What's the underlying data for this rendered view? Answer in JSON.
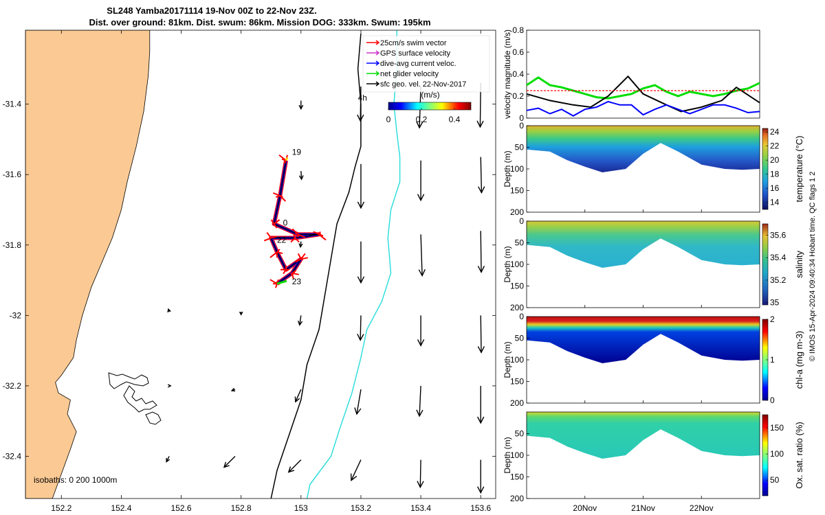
{
  "title": {
    "line1": "SL248 Yamba20171114 19-Nov 00Z to 22-Nov 23Z.",
    "line2": "Dist. over ground: 81km. Dist. swum: 86km. Mission DOG: 333km. Swum: 195km"
  },
  "colors": {
    "land": "#fbca94",
    "isobath_200": "#000000",
    "isobath_1000": "#33dddd",
    "glider_track": "#0000ff",
    "net_velocity": "#00dd00",
    "swim_vector": "#ff0000",
    "gps_velocity": "#cc33cc"
  },
  "chart_data": [
    {
      "type": "scatter",
      "name": "map",
      "xlim": [
        152.08,
        153.65
      ],
      "ylim": [
        -32.52,
        -31.19
      ],
      "x_ticks": [
        152.2,
        152.4,
        152.6,
        152.8,
        153,
        153.2,
        153.4,
        153.6
      ],
      "x_tick_labels": [
        "152.2",
        "152.4",
        "152.6",
        "152.8",
        "153",
        "153.2",
        "153.4",
        "153.6"
      ],
      "y_ticks": [
        -31.4,
        -31.6,
        -31.8,
        -32,
        -32.2,
        -32.4
      ],
      "y_tick_labels": [
        "-31.4",
        "-31.6",
        "-31.8",
        "-32",
        "-32.2",
        "-32.4"
      ],
      "legend": [
        {
          "label": "25cm/s swim vector",
          "color": "#ff0000"
        },
        {
          "label": "GPS surface velocity",
          "color": "#cc33cc"
        },
        {
          "label": "dive-avg current veloc.",
          "color": "#0000ff"
        },
        {
          "label": "net glider velocity",
          "color": "#00dd00"
        },
        {
          "label": "sfc geo. vel. 22-Nov-2017",
          "color": "#000000"
        }
      ],
      "legend_placement": "top-right",
      "colorbar": {
        "label": "(m/s)",
        "ticks": [
          "0",
          "0.2",
          "0.4"
        ],
        "range": [
          0,
          0.5
        ]
      },
      "isobath_note": "isobaths: 0   200  1000m",
      "day_labels": [
        {
          "text": "19",
          "lon": 152.97,
          "lat": -31.544
        },
        {
          "text": "22",
          "lon": 152.92,
          "lat": -31.794
        },
        {
          "text": "23",
          "lon": 152.97,
          "lat": -31.912
        }
      ],
      "clipped_labels": [
        {
          "text": "4h",
          "lon": 153.19,
          "lat": -31.39
        },
        {
          "text": "0",
          "lon": 152.94,
          "lat": -31.745
        }
      ],
      "track": [
        [
          152.95,
          -31.56
        ],
        [
          152.93,
          -31.66
        ],
        [
          152.91,
          -31.74
        ],
        [
          152.99,
          -31.77
        ],
        [
          153.06,
          -31.77
        ],
        [
          152.98,
          -31.78
        ],
        [
          152.9,
          -31.78
        ],
        [
          152.92,
          -31.82
        ],
        [
          152.95,
          -31.87
        ],
        [
          153.0,
          -31.84
        ],
        [
          152.97,
          -31.88
        ],
        [
          152.92,
          -31.91
        ]
      ],
      "surface_velocity_field": [
        {
          "lon": 153.0,
          "lat": -31.39,
          "u": 0.0,
          "v": -0.3
        },
        {
          "lon": 153.2,
          "lat": -31.35,
          "u": -0.02,
          "v": -1.25
        },
        {
          "lon": 153.4,
          "lat": -31.35,
          "u": -0.05,
          "v": -1.5
        },
        {
          "lon": 153.6,
          "lat": -31.34,
          "u": -0.02,
          "v": -1.6
        },
        {
          "lon": 153.0,
          "lat": -31.59,
          "u": 0.02,
          "v": -0.3
        },
        {
          "lon": 153.2,
          "lat": -31.57,
          "u": 0.0,
          "v": -1.6
        },
        {
          "lon": 153.4,
          "lat": -31.56,
          "u": 0.0,
          "v": -1.45
        },
        {
          "lon": 153.6,
          "lat": -31.55,
          "u": 0.03,
          "v": -1.3
        },
        {
          "lon": 153.0,
          "lat": -31.79,
          "u": -0.02,
          "v": -0.2
        },
        {
          "lon": 153.2,
          "lat": -31.79,
          "u": 0.0,
          "v": -1.5
        },
        {
          "lon": 153.4,
          "lat": -31.77,
          "u": 0.05,
          "v": -1.5
        },
        {
          "lon": 153.6,
          "lat": -31.76,
          "u": 0.02,
          "v": -1.5
        },
        {
          "lon": 152.56,
          "lat": -31.99,
          "u": -0.03,
          "v": 0.1
        },
        {
          "lon": 152.8,
          "lat": -31.99,
          "u": 0.0,
          "v": -0.1
        },
        {
          "lon": 153.0,
          "lat": -32.0,
          "u": -0.05,
          "v": -0.35
        },
        {
          "lon": 153.2,
          "lat": -32.0,
          "u": -0.02,
          "v": -0.9
        },
        {
          "lon": 153.4,
          "lat": -32.0,
          "u": 0.0,
          "v": -1.1
        },
        {
          "lon": 153.6,
          "lat": -32.0,
          "u": 0.02,
          "v": -1.35
        },
        {
          "lon": 152.56,
          "lat": -32.2,
          "u": 0.05,
          "v": 0.0
        },
        {
          "lon": 152.78,
          "lat": -32.21,
          "u": -0.12,
          "v": -0.05
        },
        {
          "lon": 153.0,
          "lat": -32.21,
          "u": -0.2,
          "v": -0.45
        },
        {
          "lon": 153.2,
          "lat": -32.21,
          "u": -0.15,
          "v": -0.9
        },
        {
          "lon": 153.4,
          "lat": -32.2,
          "u": -0.05,
          "v": -1.1
        },
        {
          "lon": 153.6,
          "lat": -32.2,
          "u": 0.0,
          "v": -1.35
        },
        {
          "lon": 152.56,
          "lat": -32.4,
          "u": -0.1,
          "v": -0.2
        },
        {
          "lon": 152.78,
          "lat": -32.4,
          "u": -0.4,
          "v": -0.4
        },
        {
          "lon": 153.0,
          "lat": -32.41,
          "u": -0.45,
          "v": -0.45
        },
        {
          "lon": 153.2,
          "lat": -32.41,
          "u": -0.35,
          "v": -0.75
        },
        {
          "lon": 153.4,
          "lat": -32.41,
          "u": -0.02,
          "v": -1.0
        },
        {
          "lon": 153.6,
          "lat": -32.41,
          "u": 0.0,
          "v": -1.2
        }
      ],
      "coastline": [
        [
          152.495,
          -31.19
        ],
        [
          152.495,
          -31.25
        ],
        [
          152.49,
          -31.32
        ],
        [
          152.475,
          -31.42
        ],
        [
          152.45,
          -31.52
        ],
        [
          152.42,
          -31.62
        ],
        [
          152.4,
          -31.7
        ],
        [
          152.37,
          -31.78
        ],
        [
          152.33,
          -31.86
        ],
        [
          152.3,
          -31.92
        ],
        [
          152.27,
          -32.0
        ],
        [
          152.25,
          -32.07
        ],
        [
          152.24,
          -32.12
        ],
        [
          152.2,
          -32.17
        ],
        [
          152.18,
          -32.19
        ],
        [
          152.19,
          -32.22
        ],
        [
          152.23,
          -32.24
        ],
        [
          152.22,
          -32.28
        ],
        [
          152.25,
          -32.33
        ],
        [
          152.23,
          -32.38
        ],
        [
          152.2,
          -32.45
        ],
        [
          152.17,
          -32.52
        ]
      ],
      "isobath_200": [
        [
          153.2,
          -31.2
        ],
        [
          153.19,
          -31.3
        ],
        [
          153.2,
          -31.4
        ],
        [
          153.2,
          -31.52
        ],
        [
          153.18,
          -31.58
        ],
        [
          153.16,
          -31.65
        ],
        [
          153.12,
          -31.74
        ],
        [
          153.1,
          -31.84
        ],
        [
          153.08,
          -31.94
        ],
        [
          153.06,
          -32.04
        ],
        [
          153.02,
          -32.14
        ],
        [
          153.0,
          -32.24
        ],
        [
          152.96,
          -32.34
        ],
        [
          152.92,
          -32.44
        ],
        [
          152.9,
          -32.52
        ]
      ],
      "isobath_1000": [
        [
          153.32,
          -31.19
        ],
        [
          153.32,
          -31.3
        ],
        [
          153.31,
          -31.4
        ],
        [
          153.32,
          -31.48
        ],
        [
          153.33,
          -31.55
        ],
        [
          153.33,
          -31.62
        ],
        [
          153.3,
          -31.7
        ],
        [
          153.29,
          -31.78
        ],
        [
          153.3,
          -31.88
        ],
        [
          153.27,
          -31.96
        ],
        [
          153.22,
          -32.04
        ],
        [
          153.2,
          -32.12
        ],
        [
          153.17,
          -32.22
        ],
        [
          153.13,
          -32.32
        ],
        [
          153.1,
          -32.4
        ],
        [
          153.03,
          -32.48
        ],
        [
          153.02,
          -32.52
        ]
      ]
    },
    {
      "type": "line",
      "name": "velocity",
      "ylabel": "velocity magnitude (m/s)",
      "ylim": [
        0,
        0.8
      ],
      "y_ticks": [
        "0",
        "0.2",
        "0.4",
        "0.6",
        "0.8"
      ],
      "x_days": [
        0,
        4
      ],
      "series": [
        {
          "color": "#00dd00",
          "x": [
            0,
            0.2,
            0.4,
            0.6,
            0.8,
            1.0,
            1.2,
            1.4,
            1.6,
            1.8,
            2.0,
            2.2,
            2.4,
            2.6,
            2.8,
            3.0,
            3.2,
            3.4,
            3.6,
            3.8,
            4.0
          ],
          "values": [
            0.3,
            0.37,
            0.3,
            0.28,
            0.25,
            0.22,
            0.19,
            0.18,
            0.2,
            0.22,
            0.27,
            0.3,
            0.24,
            0.2,
            0.24,
            0.22,
            0.2,
            0.22,
            0.25,
            0.27,
            0.32
          ]
        },
        {
          "color": "#000000",
          "x": [
            0,
            0.4,
            0.8,
            1.1,
            1.4,
            1.74,
            2.0,
            2.4,
            2.65,
            3.0,
            3.35,
            3.6,
            4.0
          ],
          "values": [
            0.22,
            0.16,
            0.12,
            0.1,
            0.2,
            0.38,
            0.22,
            0.12,
            0.06,
            0.1,
            0.16,
            0.28,
            0.14
          ]
        },
        {
          "color": "#0000ff",
          "x": [
            0,
            0.2,
            0.4,
            0.6,
            0.8,
            1.0,
            1.2,
            1.4,
            1.6,
            1.8,
            2.0,
            2.2,
            2.4,
            2.6,
            2.8,
            3.0,
            3.2,
            3.4,
            3.6,
            3.8,
            4.0
          ],
          "values": [
            0.07,
            0.09,
            0.04,
            0.08,
            0.02,
            0.08,
            0.1,
            0.15,
            0.12,
            0.12,
            0.03,
            0.08,
            0.12,
            0.08,
            0.04,
            0.08,
            0.12,
            0.12,
            0.09,
            0.05,
            0.06
          ]
        },
        {
          "color": "#ff0000",
          "dashed": true,
          "x": [
            0,
            4
          ],
          "values": [
            0.25,
            0.25
          ]
        }
      ]
    },
    {
      "type": "heatmap",
      "name": "temperature",
      "ylabel": "Depth (m)",
      "ylim": [
        200,
        0
      ],
      "y_ticks": [
        "0",
        "50",
        "100",
        "150",
        "200"
      ],
      "cbar_label": "temperature (°C)",
      "cbar_range": [
        13,
        24.5
      ],
      "cbar_ticks": [
        "24",
        "22",
        "20",
        "18",
        "16",
        "14"
      ],
      "colormap": "thermal"
    },
    {
      "type": "heatmap",
      "name": "salinity",
      "ylabel": "Depth (m)",
      "ylim": [
        200,
        0
      ],
      "y_ticks": [
        "0",
        "50",
        "100",
        "150",
        "200"
      ],
      "cbar_label": "salinity",
      "cbar_range": [
        34.98,
        35.7
      ],
      "cbar_ticks": [
        "35.6",
        "35.4",
        "35.2",
        "35"
      ],
      "colormap": "haline"
    },
    {
      "type": "heatmap",
      "name": "chl-a",
      "ylabel": "Depth (m)",
      "ylim": [
        200,
        0
      ],
      "y_ticks": [
        "0",
        "50",
        "100",
        "150",
        "200"
      ],
      "cbar_label": "chl-a (mg m-3)",
      "cbar_range": [
        0,
        2
      ],
      "cbar_ticks": [
        "2",
        "1",
        "0"
      ],
      "colormap": "jet"
    },
    {
      "type": "heatmap",
      "name": "oxygen",
      "ylabel": "Depth (m)",
      "ylim": [
        200,
        0
      ],
      "y_ticks": [
        "50",
        "100",
        "150",
        "200"
      ],
      "cbar_label": "Ox. sat. ratio (%)",
      "cbar_range": [
        20,
        175
      ],
      "cbar_ticks": [
        "150",
        "100",
        "50"
      ],
      "colormap": "jet",
      "x_tick_labels": [
        "20Nov",
        "21Nov",
        "22Nov"
      ],
      "x_tick_days": [
        1,
        2,
        3
      ]
    }
  ],
  "credit": "© IMOS 15-Apr-2024 09:40:34 Hobart time. QC flags 1  2"
}
